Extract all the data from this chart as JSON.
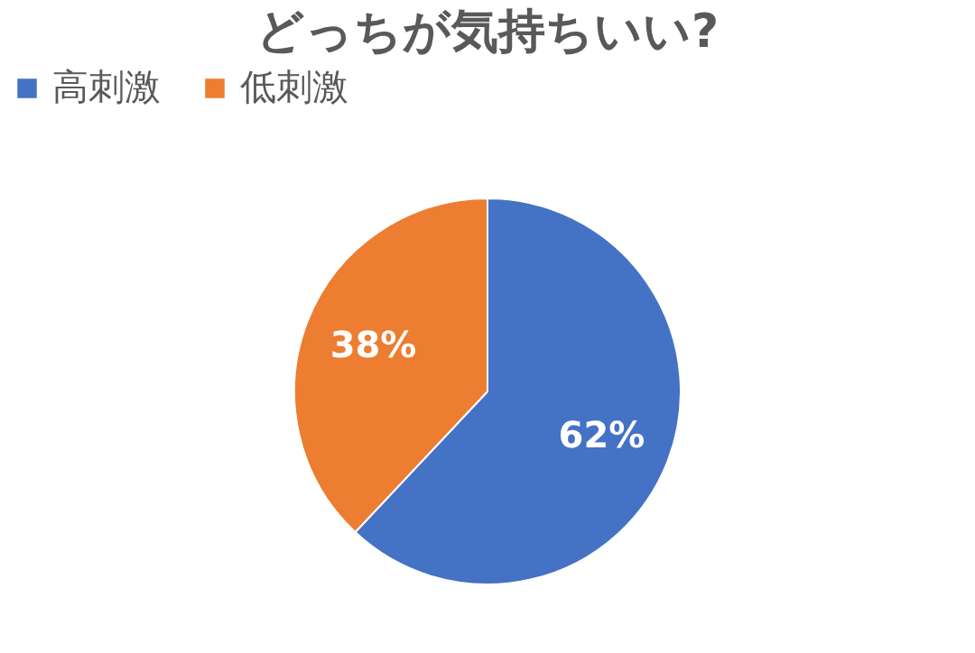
{
  "chart_data": {
    "type": "pie",
    "title": "どっちが気持ちいい?",
    "categories": [
      "高刺激",
      "低刺激"
    ],
    "values": [
      62,
      38
    ],
    "colors": [
      "#4472c4",
      "#ed7d31"
    ],
    "value_labels": [
      "62%",
      "38%"
    ],
    "legend": "top"
  }
}
